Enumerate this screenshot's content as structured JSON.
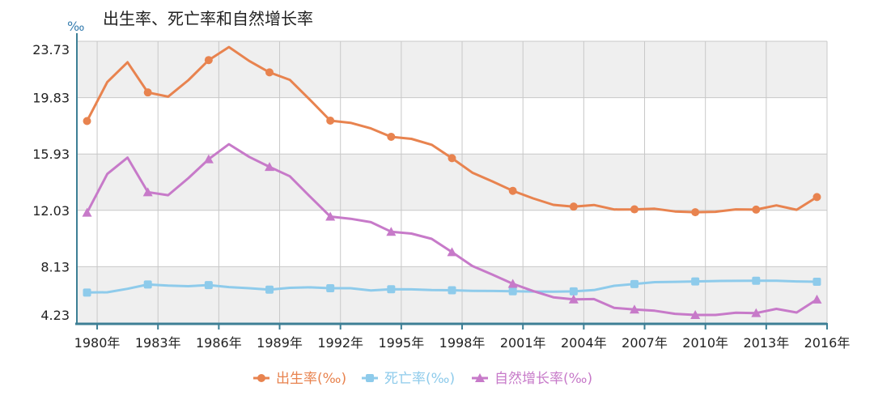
{
  "chart_data": {
    "type": "line",
    "title": "出生率、死亡率和自然增长率",
    "ylabel": "‰",
    "xlabel": "",
    "ylim": [
      4.23,
      23.73
    ],
    "yticks": [
      "23.73",
      "19.83",
      "15.93",
      "12.03",
      "8.13",
      "4.23"
    ],
    "ytick_values": [
      23.73,
      19.83,
      15.93,
      12.03,
      8.13,
      4.23
    ],
    "xtick_labels": [
      "1980年",
      "1983年",
      "1986年",
      "1989年",
      "1992年",
      "1995年",
      "1998年",
      "2001年",
      "2004年",
      "2007年",
      "2010年",
      "2013年",
      "2016年"
    ],
    "grid": true,
    "legend_position": "bottom",
    "x": [
      1980,
      1981,
      1982,
      1983,
      1984,
      1985,
      1986,
      1987,
      1988,
      1989,
      1990,
      1991,
      1992,
      1993,
      1994,
      1995,
      1996,
      1997,
      1998,
      1999,
      2000,
      2001,
      2002,
      2003,
      2004,
      2005,
      2006,
      2007,
      2008,
      2009,
      2010,
      2011,
      2012,
      2013,
      2014,
      2015,
      2016
    ],
    "series": [
      {
        "name": "出生率(‰)",
        "color": "#e8834f",
        "marker": "circle",
        "values": [
          18.21,
          20.91,
          22.28,
          20.19,
          19.9,
          21.04,
          22.43,
          23.33,
          22.37,
          21.58,
          21.06,
          19.68,
          18.24,
          18.09,
          17.7,
          17.12,
          16.98,
          16.57,
          15.64,
          14.64,
          14.03,
          13.38,
          12.86,
          12.41,
          12.29,
          12.4,
          12.09,
          12.1,
          12.14,
          11.95,
          11.9,
          11.93,
          12.1,
          12.08,
          12.37,
          12.07,
          12.95
        ]
      },
      {
        "name": "死亡率(‰)",
        "color": "#8ecbeb",
        "marker": "square",
        "values": [
          6.34,
          6.36,
          6.6,
          6.9,
          6.82,
          6.78,
          6.86,
          6.72,
          6.64,
          6.54,
          6.67,
          6.7,
          6.64,
          6.64,
          6.49,
          6.57,
          6.56,
          6.51,
          6.5,
          6.46,
          6.45,
          6.43,
          6.41,
          6.4,
          6.42,
          6.51,
          6.81,
          6.93,
          7.06,
          7.08,
          7.11,
          7.14,
          7.15,
          7.16,
          7.16,
          7.11,
          7.09
        ]
      },
      {
        "name": "自然增长率(‰)",
        "color": "#c77ac9",
        "marker": "triangle",
        "values": [
          11.87,
          14.55,
          15.68,
          13.29,
          13.08,
          14.26,
          15.57,
          16.61,
          15.73,
          15.04,
          14.39,
          12.98,
          11.6,
          11.45,
          11.21,
          10.55,
          10.42,
          10.06,
          9.14,
          8.18,
          7.58,
          6.95,
          6.45,
          6.01,
          5.87,
          5.89,
          5.28,
          5.17,
          5.08,
          4.87,
          4.79,
          4.79,
          4.95,
          4.92,
          5.21,
          4.96,
          5.86
        ]
      }
    ]
  }
}
